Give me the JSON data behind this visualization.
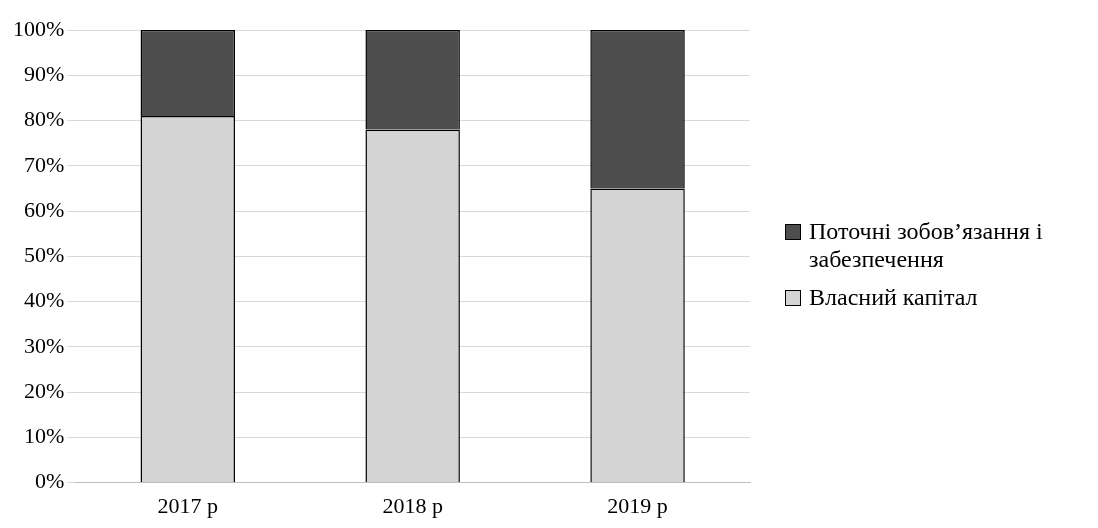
{
  "chart_data": {
    "type": "bar",
    "stacked": true,
    "categories": [
      "2017 р",
      "2018 р",
      "2019 р"
    ],
    "series": [
      {
        "name": "Власний капітал",
        "color": "#d4d4d4",
        "values": [
          81,
          78,
          65
        ]
      },
      {
        "name": "Поточні зобов’язання і забезпечення",
        "color": "#4d4d4d",
        "values": [
          19,
          22,
          35
        ]
      }
    ],
    "ylim": [
      0,
      100
    ],
    "yticks": [
      {
        "value": 0,
        "label": "0%"
      },
      {
        "value": 10,
        "label": "10%"
      },
      {
        "value": 20,
        "label": "20%"
      },
      {
        "value": 30,
        "label": "30%"
      },
      {
        "value": 40,
        "label": "40%"
      },
      {
        "value": 50,
        "label": "50%"
      },
      {
        "value": 60,
        "label": "60%"
      },
      {
        "value": 70,
        "label": "70%"
      },
      {
        "value": 80,
        "label": "80%"
      },
      {
        "value": 90,
        "label": "90%"
      },
      {
        "value": 100,
        "label": "100%"
      }
    ],
    "grid": "y",
    "legend": "right"
  }
}
